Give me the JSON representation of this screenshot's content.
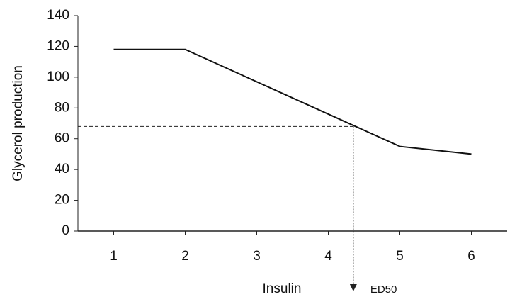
{
  "chart_data": {
    "type": "line",
    "x_label": "Insulin",
    "y_label": "Glycerol production",
    "x": [
      1,
      2,
      5,
      6
    ],
    "series": [
      {
        "color": "#111111",
        "values": [
          118,
          118,
          55,
          50
        ]
      }
    ],
    "xlim": [
      0.5,
      6.5
    ],
    "xticks": [
      1,
      2,
      3,
      4,
      5,
      6
    ],
    "ylim": [
      0,
      140
    ],
    "yticks": [
      0,
      20,
      40,
      60,
      80,
      100,
      120,
      140
    ],
    "grid": false,
    "annotations": [
      {
        "text": "ED50",
        "x": 4.35,
        "y": 68
      }
    ]
  }
}
